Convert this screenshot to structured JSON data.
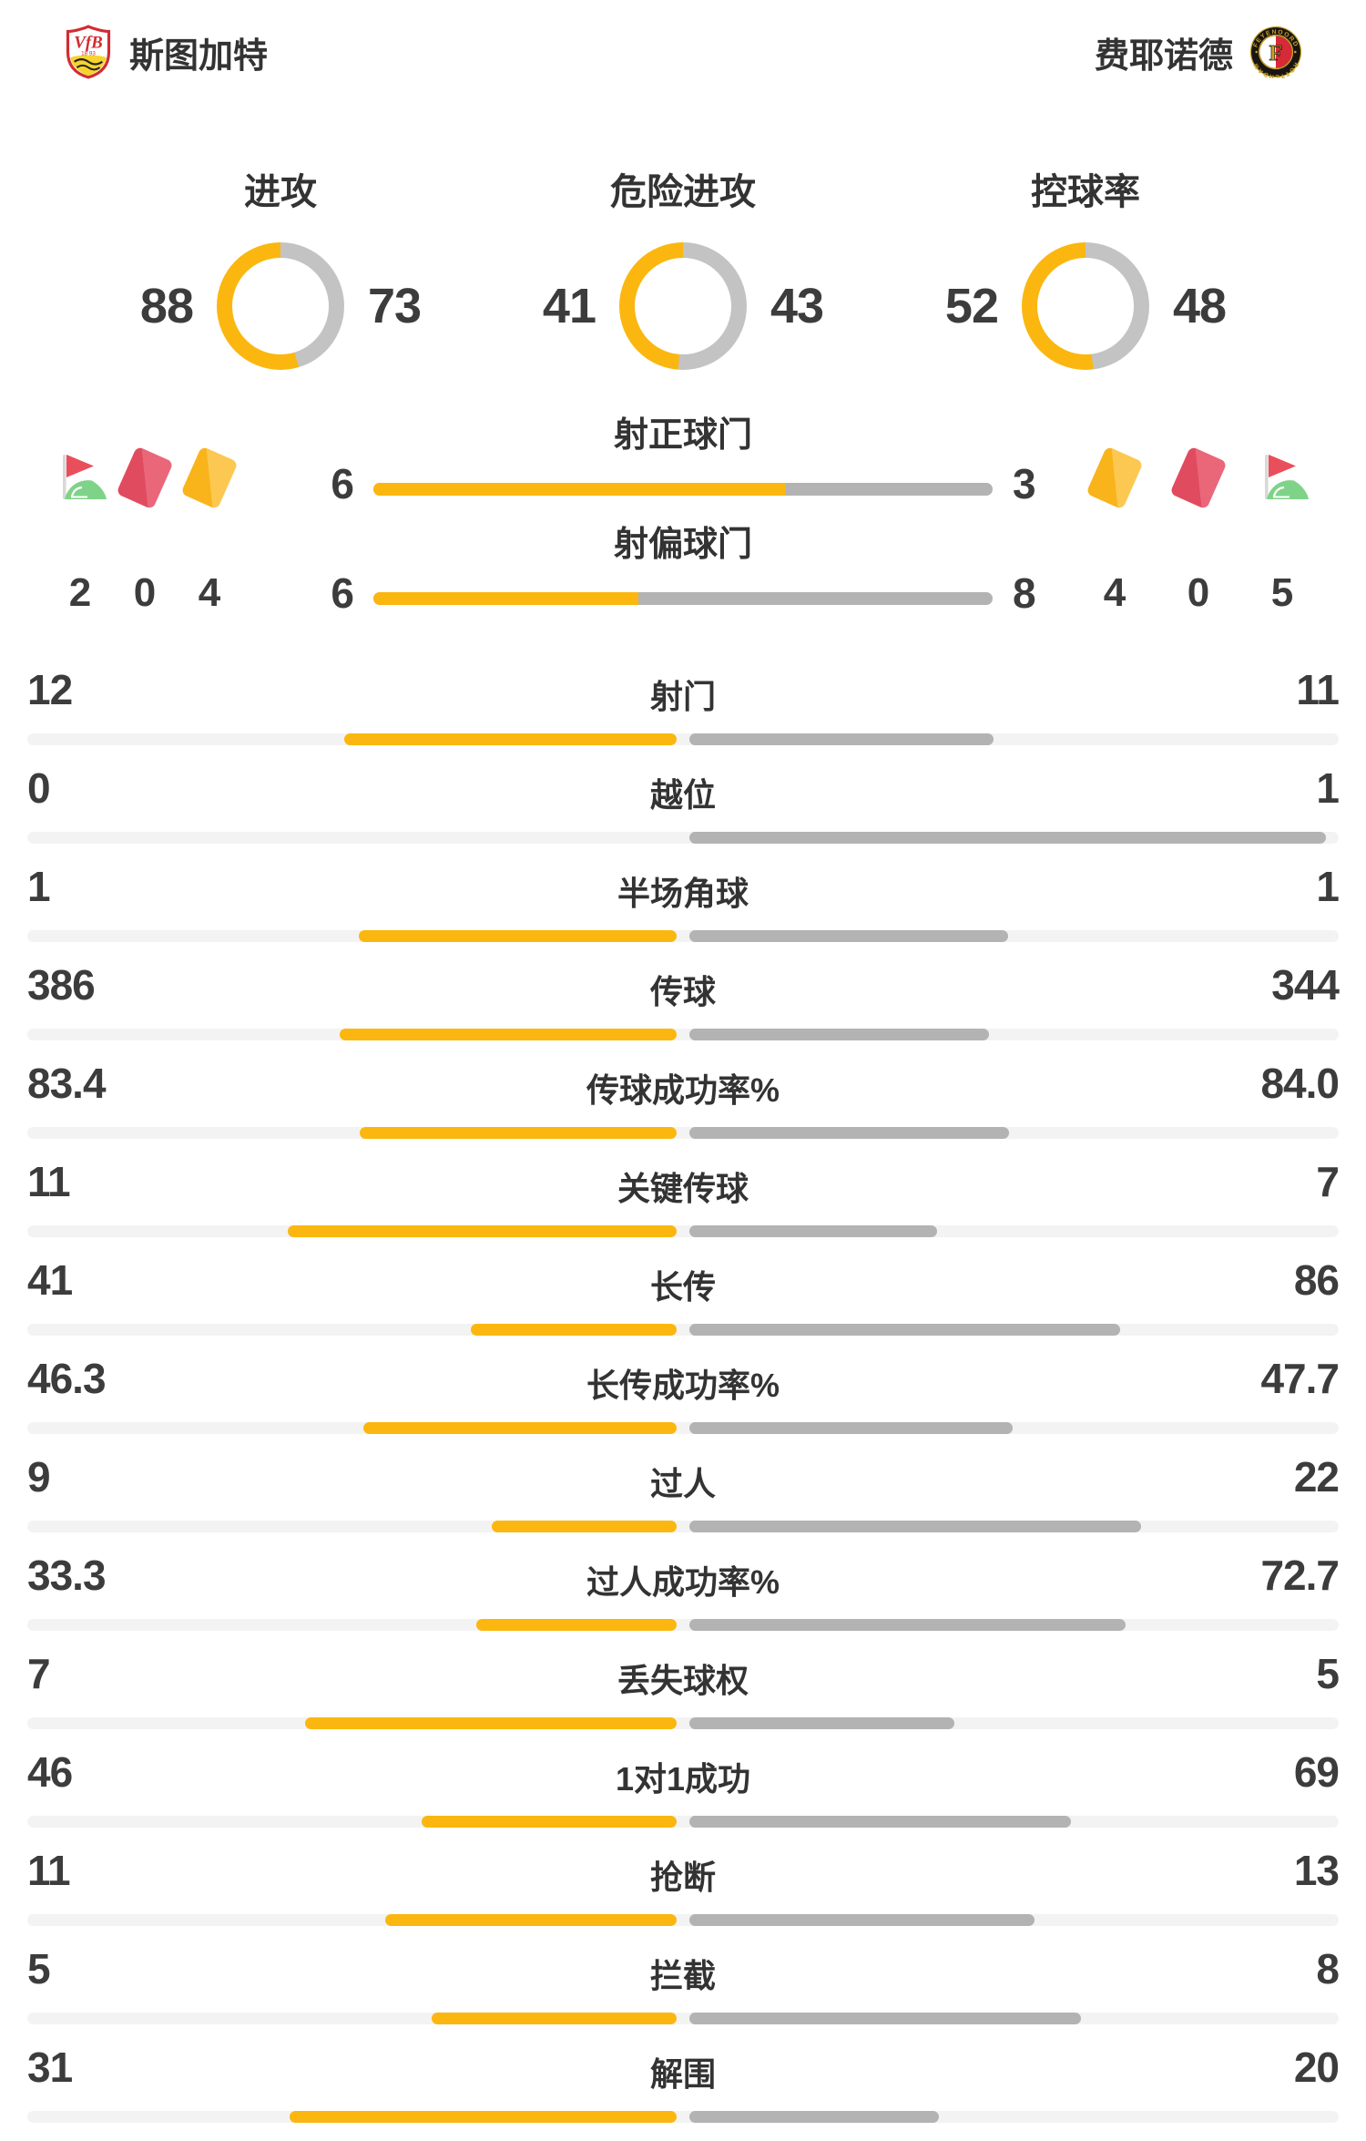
{
  "teams": {
    "home": {
      "name": "斯图加特",
      "crest_text": "VfB",
      "crest_year": "18 93"
    },
    "away": {
      "name": "费耶诺德",
      "logo_text_top": "FEYENOORD",
      "logo_text_bottom": "ROTTERDAM",
      "logo_letter": "F"
    }
  },
  "donuts": [
    {
      "label": "进攻",
      "home": 88,
      "away": 73
    },
    {
      "label": "危险进攻",
      "home": 41,
      "away": 43
    },
    {
      "label": "控球率",
      "home": 52,
      "away": 48
    }
  ],
  "discipline": {
    "home": {
      "corner_kicks": "2",
      "red_cards": "0",
      "yellow_cards": "4"
    },
    "away": {
      "yellow_cards": "4",
      "red_cards": "0",
      "corner_kicks": "5"
    }
  },
  "shot_bars": [
    {
      "label": "射正球门",
      "home": 6,
      "away": 3
    },
    {
      "label": "射偏球门",
      "home": 6,
      "away": 8
    }
  ],
  "stats": [
    {
      "label": "射门",
      "home": "12",
      "away": "11"
    },
    {
      "label": "越位",
      "home": "0",
      "away": "1"
    },
    {
      "label": "半场角球",
      "home": "1",
      "away": "1"
    },
    {
      "label": "传球",
      "home": "386",
      "away": "344"
    },
    {
      "label": "传球成功率%",
      "home": "83.4",
      "away": "84.0"
    },
    {
      "label": "关键传球",
      "home": "11",
      "away": "7"
    },
    {
      "label": "长传",
      "home": "41",
      "away": "86"
    },
    {
      "label": "长传成功率%",
      "home": "46.3",
      "away": "47.7"
    },
    {
      "label": "过人",
      "home": "9",
      "away": "22"
    },
    {
      "label": "过人成功率%",
      "home": "33.3",
      "away": "72.7"
    },
    {
      "label": "丢失球权",
      "home": "7",
      "away": "5"
    },
    {
      "label": "1对1成功",
      "home": "46",
      "away": "69"
    },
    {
      "label": "抢断",
      "home": "11",
      "away": "13"
    },
    {
      "label": "拦截",
      "home": "5",
      "away": "8"
    },
    {
      "label": "解围",
      "home": "31",
      "away": "20"
    }
  ],
  "colors": {
    "home": "#FBB70F",
    "away_bar": "#B3B3B3",
    "away_donut": "#C3C3C3",
    "track": "#F3F3F3",
    "text": "#333333",
    "value_text": "#3C3C3C",
    "card_red": "#E14B5F",
    "card_yellow": "#F9B31B",
    "flag_red": "#E94F5B",
    "flag_green": "#7FD389"
  },
  "chart_data": [
    {
      "type": "pie",
      "variant": "donut",
      "title": "进攻",
      "series": [
        {
          "name": "斯图加特",
          "value": 88
        },
        {
          "name": "费耶诺德",
          "value": 73
        }
      ],
      "colors": [
        "#FBB70F",
        "#C3C3C3"
      ],
      "labels_position": "sides"
    },
    {
      "type": "pie",
      "variant": "donut",
      "title": "危险进攻",
      "series": [
        {
          "name": "斯图加特",
          "value": 41
        },
        {
          "name": "费耶诺德",
          "value": 43
        }
      ],
      "colors": [
        "#FBB70F",
        "#C3C3C3"
      ],
      "labels_position": "sides"
    },
    {
      "type": "pie",
      "variant": "donut",
      "title": "控球率",
      "series": [
        {
          "name": "斯图加特",
          "value": 52
        },
        {
          "name": "费耶诺德",
          "value": 48
        }
      ],
      "colors": [
        "#FBB70F",
        "#C3C3C3"
      ],
      "labels_position": "sides"
    },
    {
      "type": "bar",
      "title": "射正球门",
      "categories": [
        "斯图加特",
        "费耶诺德"
      ],
      "values": [
        6,
        3
      ],
      "orientation": "horizontal-split"
    },
    {
      "type": "bar",
      "title": "射偏球门",
      "categories": [
        "斯图加特",
        "费耶诺德"
      ],
      "values": [
        6,
        8
      ],
      "orientation": "horizontal-split"
    },
    {
      "type": "bar",
      "title": "比赛数据对比",
      "orientation": "horizontal-paired",
      "categories": [
        "射门",
        "越位",
        "半场角球",
        "传球",
        "传球成功率%",
        "关键传球",
        "长传",
        "长传成功率%",
        "过人",
        "过人成功率%",
        "丢失球权",
        "1对1成功",
        "抢断",
        "拦截",
        "解围"
      ],
      "series": [
        {
          "name": "斯图加特",
          "values": [
            12,
            0,
            1,
            386,
            83.4,
            11,
            41,
            46.3,
            9,
            33.3,
            7,
            46,
            11,
            5,
            31
          ]
        },
        {
          "name": "费耶诺德",
          "values": [
            11,
            1,
            1,
            344,
            84.0,
            7,
            86,
            47.7,
            22,
            72.7,
            5,
            69,
            13,
            8,
            20
          ]
        }
      ]
    }
  ]
}
